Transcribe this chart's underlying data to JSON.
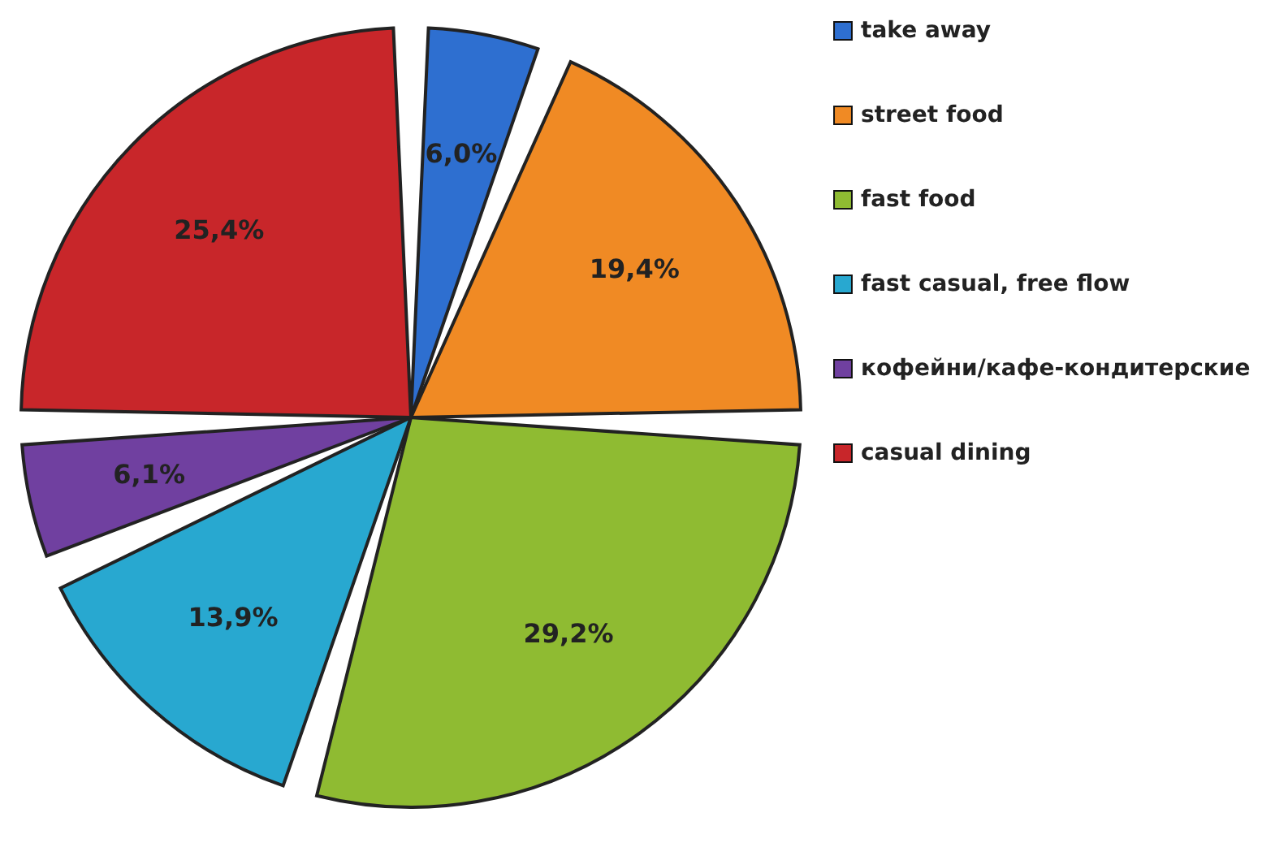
{
  "chart_data": {
    "type": "pie",
    "categories": [
      "take away",
      "street food",
      "fast food",
      "fast casual, free flow",
      "кофейни/кафе-кондитерские",
      "casual dining"
    ],
    "values": [
      6.0,
      19.4,
      29.2,
      13.9,
      6.1,
      25.4
    ],
    "value_labels": [
      "6,0%",
      "19,4%",
      "29,2%",
      "13,9%",
      "6,1%",
      "25,4%"
    ],
    "colors": [
      "#2e6fd0",
      "#f08a24",
      "#8fbb32",
      "#28a8d0",
      "#7040a0",
      "#c8262a"
    ],
    "legend": "right"
  }
}
